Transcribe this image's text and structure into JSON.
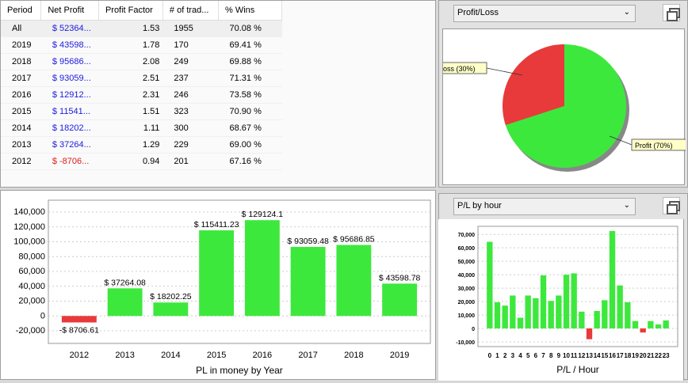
{
  "table": {
    "headers": [
      "Period",
      "Net Profit",
      "Profit Factor",
      "# of trad...",
      "% Wins"
    ],
    "rows": [
      [
        "All",
        "$ 52364...",
        "1.53",
        "1955",
        "70.08 %"
      ],
      [
        "2019",
        "$ 43598...",
        "1.78",
        "170",
        "69.41 %"
      ],
      [
        "2018",
        "$ 95686...",
        "2.08",
        "249",
        "69.88 %"
      ],
      [
        "2017",
        "$ 93059...",
        "2.51",
        "237",
        "71.31 %"
      ],
      [
        "2016",
        "$ 12912...",
        "2.31",
        "246",
        "73.58 %"
      ],
      [
        "2015",
        "$ 11541...",
        "1.51",
        "323",
        "70.90 %"
      ],
      [
        "2014",
        "$ 18202...",
        "1.11",
        "300",
        "68.67 %"
      ],
      [
        "2013",
        "$ 37264...",
        "1.29",
        "229",
        "69.00 %"
      ],
      [
        "2012",
        "$ -8706...",
        "0.94",
        "201",
        "67.16 %"
      ]
    ]
  },
  "pie_panel": {
    "select": "Profit/Loss"
  },
  "hour_panel": {
    "select": "P/L by hour"
  },
  "colors": {
    "positive": "#3de83d",
    "negative": "#e83a3a"
  },
  "chart_data": [
    {
      "type": "pie",
      "slices": [
        {
          "label": "Loss (30%)",
          "value": 30
        },
        {
          "label": "Profit (70%)",
          "value": 70
        }
      ]
    },
    {
      "type": "bar",
      "title": "",
      "xlabel": "PL in money by Year",
      "ylabel": "",
      "categories": [
        "2012",
        "2013",
        "2014",
        "2015",
        "2016",
        "2017",
        "2018",
        "2019"
      ],
      "values": [
        -8706.61,
        37264.08,
        18202.25,
        115411.23,
        129124.1,
        93059.48,
        95686.85,
        43598.78
      ],
      "labels": [
        "-$ 8706.61",
        "$ 37264.08",
        "$ 18202.25",
        "$ 115411.23",
        "$ 129124.1",
        "$ 93059.48",
        "$ 95686.85",
        "$ 43598.78"
      ],
      "yticks": [
        "-20,000",
        "0",
        "20,000",
        "40,000",
        "60,000",
        "80,000",
        "100,000",
        "120,000",
        "140,000"
      ],
      "ylim": [
        -37000,
        156000
      ],
      "grid": true
    },
    {
      "type": "bar",
      "xlabel": "P/L / Hour",
      "categories": [
        "0",
        "1",
        "2",
        "3",
        "4",
        "5",
        "6",
        "7",
        "8",
        "9",
        "10",
        "11",
        "12",
        "13",
        "14",
        "15",
        "16",
        "17",
        "18",
        "19",
        "20",
        "21",
        "22",
        "23"
      ],
      "values": [
        64500,
        19500,
        17000,
        24500,
        8000,
        24500,
        22500,
        39500,
        20500,
        24500,
        40000,
        41000,
        12500,
        -8000,
        13000,
        21000,
        72500,
        32000,
        19500,
        5500,
        -3000,
        5500,
        3000,
        6000
      ],
      "yticks": [
        "-10,000",
        "0",
        "10,000",
        "20,000",
        "30,000",
        "40,000",
        "50,000",
        "60,000",
        "70,000"
      ],
      "ylim": [
        -13500,
        76000
      ],
      "grid": true
    }
  ]
}
